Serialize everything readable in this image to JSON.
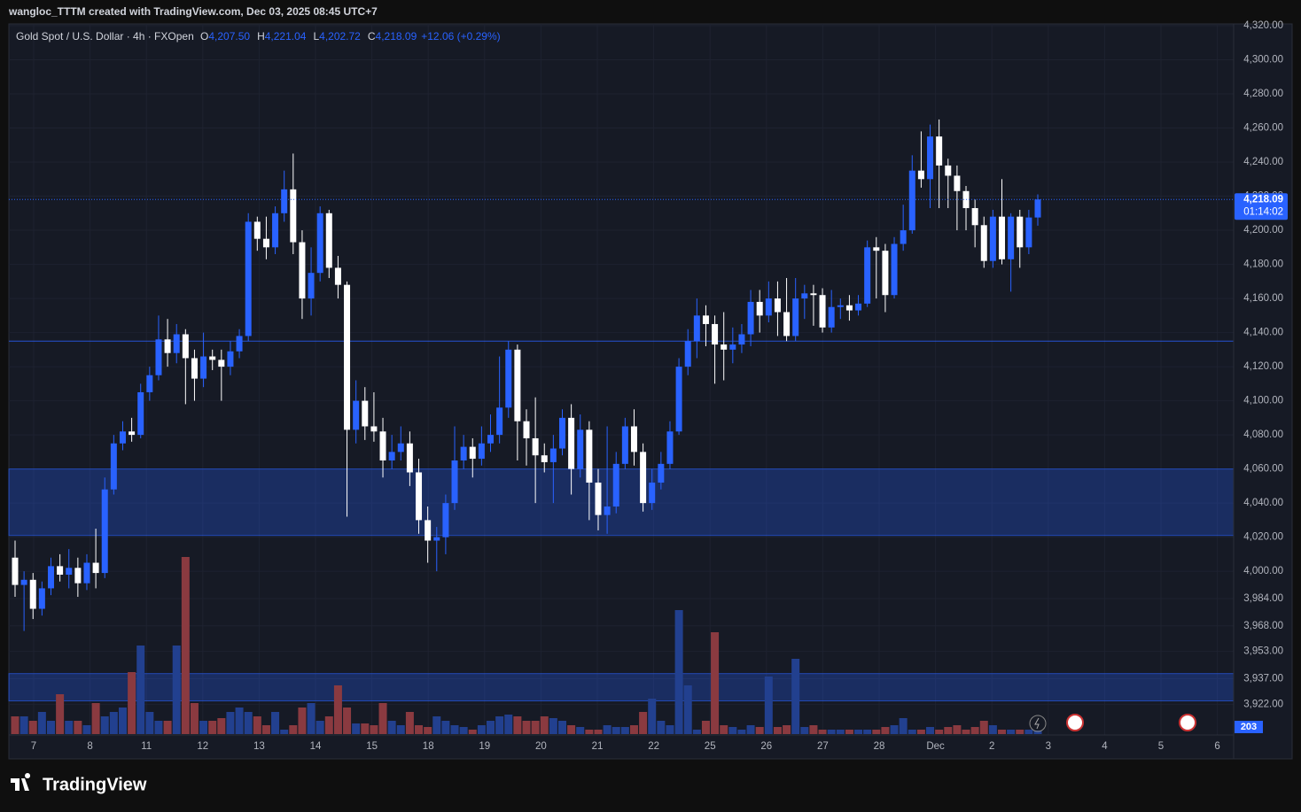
{
  "header": {
    "text": "wangloc_TTTM created with TradingView.com, Dec 03, 2025 08:45 UTC+7"
  },
  "footer": {
    "logo": "TradingView"
  },
  "chart_data": {
    "type": "candlestick",
    "title": "Gold Spot / U.S. Dollar · 4h · FXOpen",
    "ohlc_legend": [
      {
        "label": "O",
        "value": "4,207.50"
      },
      {
        "label": "H",
        "value": "4,221.04"
      },
      {
        "label": "L",
        "value": "4,202.72"
      },
      {
        "label": "C",
        "value": "4,218.09"
      }
    ],
    "change": "+12.06 (+0.29%)",
    "open": [
      4008,
      3992,
      3995,
      3978,
      3990,
      4003,
      3998,
      4002,
      3993,
      4005,
      3999,
      4048,
      4075,
      4082,
      4080,
      4105,
      4115,
      4136,
      4128,
      4139,
      4125,
      4113,
      4126,
      4124,
      4120,
      4129,
      4138,
      4205,
      4195,
      4190,
      4210,
      4224,
      4193,
      4160,
      4175,
      4210,
      4178,
      4168,
      4083,
      4100,
      4085,
      4082,
      4065,
      4070,
      4075,
      4058,
      4030,
      4018,
      4020,
      4040,
      4065,
      4073,
      4066,
      4075,
      4080,
      4096,
      4130,
      4088,
      4078,
      4068,
      4064,
      4072,
      4090,
      4060,
      4083,
      4052,
      4033,
      4038,
      4063,
      4085,
      4070,
      4040,
      4052,
      4063,
      4082,
      4120,
      4135,
      4150,
      4145,
      4133,
      4130,
      4133,
      4139,
      4158,
      4150,
      4160,
      4152,
      4138,
      4160,
      4163,
      4162,
      4143,
      4155,
      4156,
      4153,
      4157,
      4190,
      4188,
      4162,
      4192,
      4200,
      4235,
      4230,
      4255,
      4238,
      4232,
      4223,
      4213,
      4203,
      4182,
      4208,
      4183,
      4208,
      4190,
      4207.5
    ],
    "high": [
      4018,
      4000,
      3999,
      3994,
      4008,
      4010,
      4013,
      4008,
      4010,
      4025,
      4055,
      4080,
      4088,
      4090,
      4110,
      4120,
      4150,
      4148,
      4145,
      4142,
      4130,
      4140,
      4130,
      4130,
      4135,
      4142,
      4210,
      4208,
      4208,
      4214,
      4235,
      4245,
      4200,
      4190,
      4214,
      4212,
      4185,
      4170,
      4112,
      4108,
      4105,
      4090,
      4080,
      4085,
      4082,
      4066,
      4038,
      4026,
      4045,
      4085,
      4080,
      4078,
      4085,
      4092,
      4126,
      4135,
      4133,
      4095,
      4102,
      4075,
      4080,
      4095,
      4098,
      4092,
      4088,
      4060,
      4085,
      4070,
      4090,
      4095,
      4075,
      4060,
      4070,
      4088,
      4125,
      4142,
      4160,
      4156,
      4150,
      4152,
      4143,
      4145,
      4165,
      4165,
      4170,
      4170,
      4172,
      4172,
      4168,
      4168,
      4166,
      4165,
      4160,
      4162,
      4162,
      4194,
      4196,
      4192,
      4196,
      4215,
      4244,
      4258,
      4262,
      4265,
      4242,
      4238,
      4226,
      4218,
      4208,
      4212,
      4230,
      4210,
      4212,
      4212,
      4221.04
    ],
    "low": [
      3985,
      3965,
      3972,
      3974,
      3986,
      3994,
      3990,
      3985,
      3989,
      3990,
      3996,
      4045,
      4071,
      4076,
      4078,
      4100,
      4112,
      4120,
      4122,
      4098,
      4100,
      4108,
      4118,
      4100,
      4115,
      4125,
      4135,
      4188,
      4183,
      4186,
      4205,
      4186,
      4148,
      4150,
      4170,
      4172,
      4160,
      4032,
      4075,
      4077,
      4076,
      4055,
      4060,
      4065,
      4050,
      4022,
      4005,
      4000,
      4010,
      4036,
      4060,
      4055,
      4062,
      4070,
      4075,
      4090,
      4065,
      4062,
      4040,
      4058,
      4040,
      4068,
      4045,
      4055,
      4030,
      4024,
      4022,
      4034,
      4060,
      4062,
      4035,
      4036,
      4048,
      4060,
      4080,
      4115,
      4125,
      4132,
      4110,
      4112,
      4122,
      4128,
      4132,
      4140,
      4146,
      4138,
      4135,
      4135,
      4148,
      4144,
      4140,
      4140,
      4148,
      4147,
      4150,
      4155,
      4160,
      4152,
      4160,
      4188,
      4198,
      4225,
      4213,
      4213,
      4213,
      4200,
      4200,
      4190,
      4178,
      4178,
      4180,
      4164,
      4178,
      4186,
      4202.72
    ],
    "close": [
      3992,
      3995,
      3978,
      3990,
      4003,
      3998,
      4002,
      3993,
      4005,
      3999,
      4048,
      4075,
      4082,
      4080,
      4105,
      4115,
      4136,
      4128,
      4139,
      4125,
      4113,
      4126,
      4124,
      4120,
      4129,
      4138,
      4205,
      4195,
      4190,
      4210,
      4224,
      4193,
      4160,
      4175,
      4210,
      4178,
      4168,
      4083,
      4100,
      4085,
      4082,
      4065,
      4070,
      4075,
      4058,
      4030,
      4018,
      4020,
      4040,
      4065,
      4073,
      4066,
      4075,
      4080,
      4096,
      4130,
      4088,
      4078,
      4068,
      4064,
      4072,
      4090,
      4060,
      4083,
      4052,
      4033,
      4038,
      4063,
      4085,
      4070,
      4040,
      4052,
      4063,
      4082,
      4120,
      4135,
      4150,
      4145,
      4133,
      4130,
      4133,
      4139,
      4158,
      4150,
      4160,
      4152,
      4138,
      4160,
      4163,
      4162,
      4143,
      4155,
      4156,
      4153,
      4157,
      4190,
      4188,
      4162,
      4192,
      4200,
      4235,
      4230,
      4255,
      4238,
      4232,
      4223,
      4213,
      4203,
      4182,
      4208,
      4183,
      4208,
      4190,
      4207.5,
      4218.09
    ],
    "volume": [
      1000,
      1000,
      750,
      1250,
      750,
      2250,
      750,
      750,
      500,
      1750,
      1000,
      1250,
      1500,
      3500,
      5000,
      1250,
      750,
      750,
      5000,
      10000,
      1750,
      750,
      750,
      900,
      1250,
      1500,
      1250,
      1000,
      500,
      1250,
      250,
      500,
      1500,
      1750,
      750,
      1000,
      2750,
      1500,
      600,
      600,
      500,
      1750,
      750,
      500,
      1250,
      500,
      400,
      1000,
      750,
      500,
      400,
      250,
      500,
      750,
      1000,
      1100,
      1000,
      750,
      750,
      1000,
      900,
      750,
      500,
      400,
      250,
      250,
      500,
      400,
      400,
      500,
      1250,
      2000,
      750,
      500,
      7000,
      2750,
      250,
      750,
      5750,
      500,
      400,
      250,
      500,
      400,
      3250,
      400,
      500,
      4250,
      400,
      500,
      250,
      250,
      250,
      250,
      250,
      250,
      250,
      400,
      500,
      900,
      250,
      250,
      400,
      250,
      400,
      500,
      250,
      400,
      750,
      500,
      250,
      250,
      250,
      250,
      203
    ],
    "up_color": "#2962ff",
    "down_color": "#ffffff",
    "volume_up_color": "#22408f",
    "volume_down_color": "#8a3a40",
    "ylim": [
      3904,
      4320
    ],
    "yticks": [
      {
        "value": 4320,
        "label": "4,320.00"
      },
      {
        "value": 4300,
        "label": "4,300.00"
      },
      {
        "value": 4280,
        "label": "4,280.00"
      },
      {
        "value": 4260,
        "label": "4,260.00"
      },
      {
        "value": 4240,
        "label": "4,240.00"
      },
      {
        "value": 4220,
        "label": "4,220.00"
      },
      {
        "value": 4200,
        "label": "4,200.00"
      },
      {
        "value": 4180,
        "label": "4,180.00"
      },
      {
        "value": 4160,
        "label": "4,160.00"
      },
      {
        "value": 4140,
        "label": "4,140.00"
      },
      {
        "value": 4120,
        "label": "4,120.00"
      },
      {
        "value": 4100,
        "label": "4,100.00"
      },
      {
        "value": 4080,
        "label": "4,080.00"
      },
      {
        "value": 4060,
        "label": "4,060.00"
      },
      {
        "value": 4040,
        "label": "4,040.00"
      },
      {
        "value": 4020,
        "label": "4,020.00"
      },
      {
        "value": 4000,
        "label": "4,000.00"
      },
      {
        "value": 3984,
        "label": "3,984.00"
      },
      {
        "value": 3968,
        "label": "3,968.00"
      },
      {
        "value": 3953,
        "label": "3,953.00"
      },
      {
        "value": 3937,
        "label": "3,937.00"
      },
      {
        "value": 3922,
        "label": "3,922.00"
      }
    ],
    "vlim": [
      0,
      10000
    ],
    "x_labels": [
      "7",
      "8",
      "11",
      "12",
      "13",
      "14",
      "15",
      "18",
      "19",
      "20",
      "21",
      "22",
      "25",
      "26",
      "27",
      "28",
      "Dec",
      "2",
      "3",
      "4",
      "5",
      "6"
    ],
    "last_price_label": "4,218.09",
    "countdown": "01:14:02",
    "zones": [
      [
        4021,
        4060
      ],
      [
        3924,
        3940
      ]
    ],
    "hline": 4135,
    "grid": true
  }
}
